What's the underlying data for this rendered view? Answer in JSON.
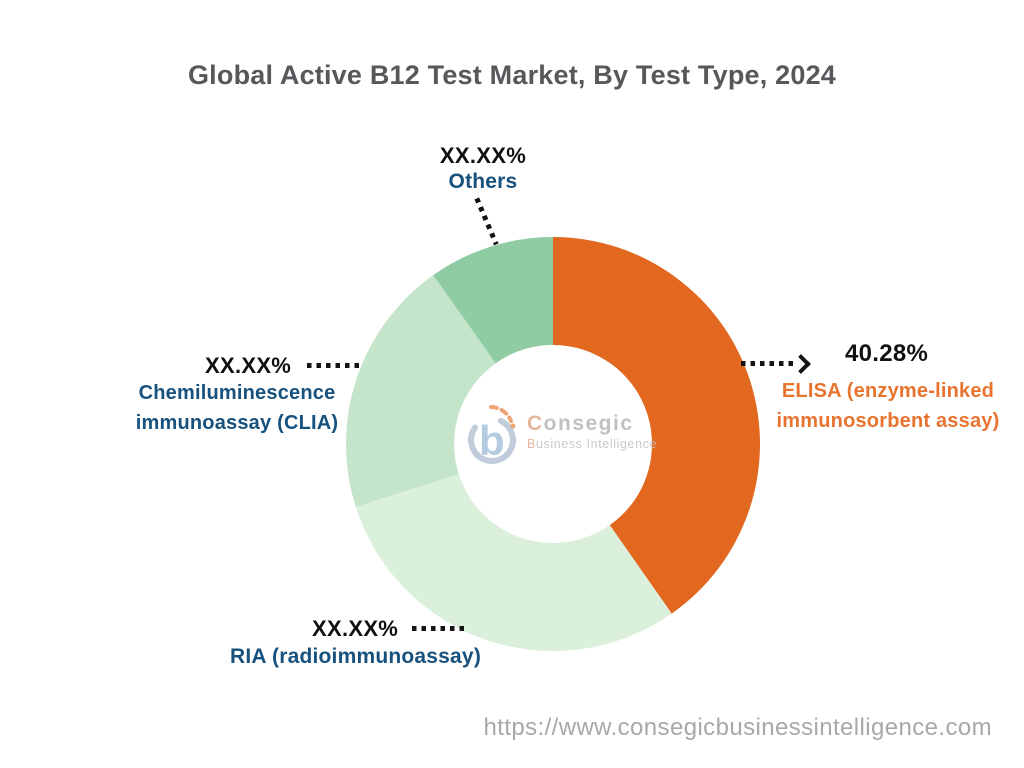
{
  "title": "Global Active B12 Test Market, By Test Type, 2024",
  "chart_data": {
    "type": "pie",
    "subtype": "donut",
    "title": "Global Active B12 Test Market, By Test Type, 2024",
    "start_angle_deg": 0,
    "direction": "clockwise",
    "inner_radius_ratio": 0.48,
    "legend": "none (direct callout labels)",
    "segments": [
      {
        "id": "elisa",
        "label": "ELISA (enzyme-linked immunosorbent assay)",
        "value_label": "40.28%",
        "estimated_pct": 40.28,
        "color": "#E2671F"
      },
      {
        "id": "ria",
        "label": "RIA (radioimmunoassay)",
        "value_label": "XX.XX%",
        "estimated_pct": 29.8,
        "color": "#DBF0DB"
      },
      {
        "id": "clia",
        "label": "Chemiluminescence immunoassay (CLIA)",
        "value_label": "XX.XX%",
        "estimated_pct": 20.1,
        "color": "#C5E5CA"
      },
      {
        "id": "others",
        "label": "Others",
        "value_label": "XX.XX%",
        "estimated_pct": 9.82,
        "color": "#8FCBA3"
      }
    ]
  },
  "callouts": {
    "others": {
      "pct": "XX.XX%",
      "line1": "Others"
    },
    "elisa": {
      "pct": "40.28%",
      "line1": "ELISA (enzyme-linked",
      "line2": "immunosorbent assay)"
    },
    "clia": {
      "pct": "XX.XX%",
      "line1": "Chemiluminescence",
      "line2": "immunoassay (CLIA)"
    },
    "ria": {
      "pct": "XX.XX%",
      "line1": "RIA (radioimmunoassay)"
    }
  },
  "watermark": {
    "brand": "Consegic",
    "tagline": "Business Intelligence"
  },
  "footer": {
    "url": "https://www.consegicbusinessintelligence.com"
  },
  "colors": {
    "title_text": "#57585C",
    "percent_text": "#101010",
    "category_text_navy": "#17517E",
    "category_text_orange": "#E8742F",
    "url_text": "#A8A8AB",
    "background": "#FFFFFF"
  }
}
